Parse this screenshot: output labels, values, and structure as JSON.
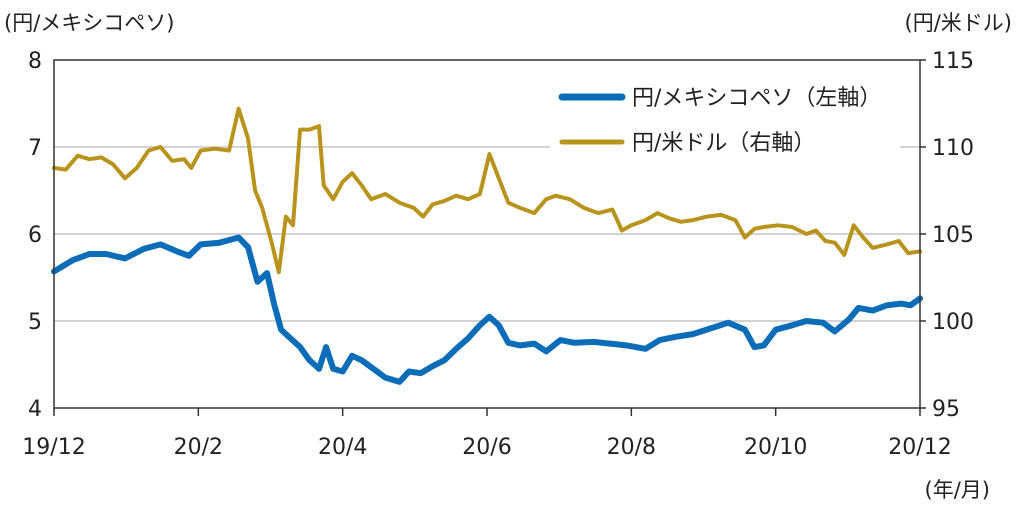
{
  "chart_data": {
    "type": "line",
    "title": "",
    "left_unit": "(円/メキシコペソ)",
    "right_unit": "(円/米ドル)",
    "x_unit": "(年/月)",
    "x_tick_labels": [
      "19/12",
      "20/2",
      "20/4",
      "20/6",
      "20/8",
      "20/10",
      "20/12"
    ],
    "x_tick_positions": [
      0,
      61,
      122,
      183,
      244,
      305,
      366
    ],
    "x_range": [
      0,
      366
    ],
    "y_left_ticks": [
      4,
      5,
      6,
      7,
      8
    ],
    "y_left_range": [
      4,
      8
    ],
    "y_right_ticks": [
      95,
      100,
      105,
      110,
      115
    ],
    "y_right_range": [
      95,
      115
    ],
    "grid": true,
    "legend_position": "top-right",
    "series": [
      {
        "name": "円/メキシコペソ（左軸）",
        "axis": "left",
        "color": "#0b6db7",
        "points": [
          [
            0,
            5.57
          ],
          [
            8,
            5.7
          ],
          [
            15,
            5.77
          ],
          [
            22,
            5.77
          ],
          [
            30,
            5.72
          ],
          [
            38,
            5.83
          ],
          [
            45,
            5.88
          ],
          [
            52,
            5.8
          ],
          [
            57,
            5.75
          ],
          [
            62,
            5.88
          ],
          [
            70,
            5.9
          ],
          [
            78,
            5.96
          ],
          [
            82,
            5.85
          ],
          [
            86,
            5.45
          ],
          [
            90,
            5.55
          ],
          [
            93,
            5.2
          ],
          [
            96,
            4.9
          ],
          [
            100,
            4.8
          ],
          [
            104,
            4.7
          ],
          [
            108,
            4.55
          ],
          [
            112,
            4.45
          ],
          [
            115,
            4.7
          ],
          [
            118,
            4.45
          ],
          [
            122,
            4.42
          ],
          [
            126,
            4.6
          ],
          [
            130,
            4.55
          ],
          [
            135,
            4.45
          ],
          [
            140,
            4.35
          ],
          [
            146,
            4.3
          ],
          [
            150,
            4.42
          ],
          [
            155,
            4.4
          ],
          [
            160,
            4.48
          ],
          [
            165,
            4.55
          ],
          [
            170,
            4.68
          ],
          [
            175,
            4.8
          ],
          [
            180,
            4.95
          ],
          [
            184,
            5.05
          ],
          [
            188,
            4.95
          ],
          [
            192,
            4.75
          ],
          [
            197,
            4.72
          ],
          [
            203,
            4.74
          ],
          [
            208,
            4.65
          ],
          [
            214,
            4.78
          ],
          [
            220,
            4.75
          ],
          [
            228,
            4.76
          ],
          [
            235,
            4.74
          ],
          [
            242,
            4.72
          ],
          [
            250,
            4.68
          ],
          [
            256,
            4.78
          ],
          [
            263,
            4.82
          ],
          [
            270,
            4.85
          ],
          [
            278,
            4.92
          ],
          [
            285,
            4.98
          ],
          [
            292,
            4.9
          ],
          [
            296,
            4.7
          ],
          [
            300,
            4.72
          ],
          [
            305,
            4.9
          ],
          [
            312,
            4.95
          ],
          [
            318,
            5.0
          ],
          [
            325,
            4.98
          ],
          [
            330,
            4.88
          ],
          [
            336,
            5.02
          ],
          [
            340,
            5.15
          ],
          [
            346,
            5.12
          ],
          [
            352,
            5.18
          ],
          [
            358,
            5.2
          ],
          [
            362,
            5.18
          ],
          [
            366,
            5.26
          ]
        ]
      },
      {
        "name": "円/米ドル（右軸）",
        "axis": "right",
        "color": "#b8941c",
        "points": [
          [
            0,
            108.8
          ],
          [
            5,
            108.7
          ],
          [
            10,
            109.5
          ],
          [
            15,
            109.3
          ],
          [
            20,
            109.4
          ],
          [
            25,
            109.0
          ],
          [
            30,
            108.2
          ],
          [
            35,
            108.8
          ],
          [
            40,
            109.8
          ],
          [
            45,
            110.0
          ],
          [
            50,
            109.2
          ],
          [
            55,
            109.3
          ],
          [
            58,
            108.8
          ],
          [
            62,
            109.8
          ],
          [
            68,
            109.9
          ],
          [
            74,
            109.8
          ],
          [
            78,
            112.2
          ],
          [
            82,
            110.5
          ],
          [
            85,
            107.5
          ],
          [
            88,
            106.5
          ],
          [
            92,
            104.5
          ],
          [
            95,
            102.8
          ],
          [
            98,
            106.0
          ],
          [
            101,
            105.5
          ],
          [
            104,
            111.0
          ],
          [
            108,
            111.0
          ],
          [
            112,
            111.2
          ],
          [
            114,
            107.8
          ],
          [
            118,
            107.0
          ],
          [
            122,
            108.0
          ],
          [
            126,
            108.5
          ],
          [
            130,
            107.8
          ],
          [
            134,
            107.0
          ],
          [
            140,
            107.3
          ],
          [
            146,
            106.8
          ],
          [
            152,
            106.5
          ],
          [
            156,
            106.0
          ],
          [
            160,
            106.7
          ],
          [
            165,
            106.9
          ],
          [
            170,
            107.2
          ],
          [
            175,
            107.0
          ],
          [
            180,
            107.3
          ],
          [
            184,
            109.6
          ],
          [
            188,
            108.2
          ],
          [
            192,
            106.8
          ],
          [
            197,
            106.5
          ],
          [
            203,
            106.2
          ],
          [
            208,
            107.0
          ],
          [
            212,
            107.2
          ],
          [
            218,
            107.0
          ],
          [
            224,
            106.5
          ],
          [
            230,
            106.2
          ],
          [
            236,
            106.4
          ],
          [
            240,
            105.2
          ],
          [
            244,
            105.5
          ],
          [
            250,
            105.8
          ],
          [
            255,
            106.2
          ],
          [
            260,
            105.9
          ],
          [
            265,
            105.7
          ],
          [
            270,
            105.8
          ],
          [
            276,
            106.0
          ],
          [
            282,
            106.1
          ],
          [
            288,
            105.8
          ],
          [
            292,
            104.8
          ],
          [
            296,
            105.3
          ],
          [
            300,
            105.4
          ],
          [
            306,
            105.5
          ],
          [
            312,
            105.4
          ],
          [
            318,
            105.0
          ],
          [
            322,
            105.2
          ],
          [
            326,
            104.6
          ],
          [
            330,
            104.5
          ],
          [
            334,
            103.8
          ],
          [
            338,
            105.5
          ],
          [
            342,
            104.8
          ],
          [
            346,
            104.2
          ],
          [
            352,
            104.4
          ],
          [
            357,
            104.6
          ],
          [
            361,
            103.9
          ],
          [
            366,
            104.0
          ]
        ]
      }
    ]
  },
  "colors": {
    "mxn": "#0b6db7",
    "usd": "#b8941c",
    "grid": "#d3d3d3",
    "axis": "#333333"
  }
}
